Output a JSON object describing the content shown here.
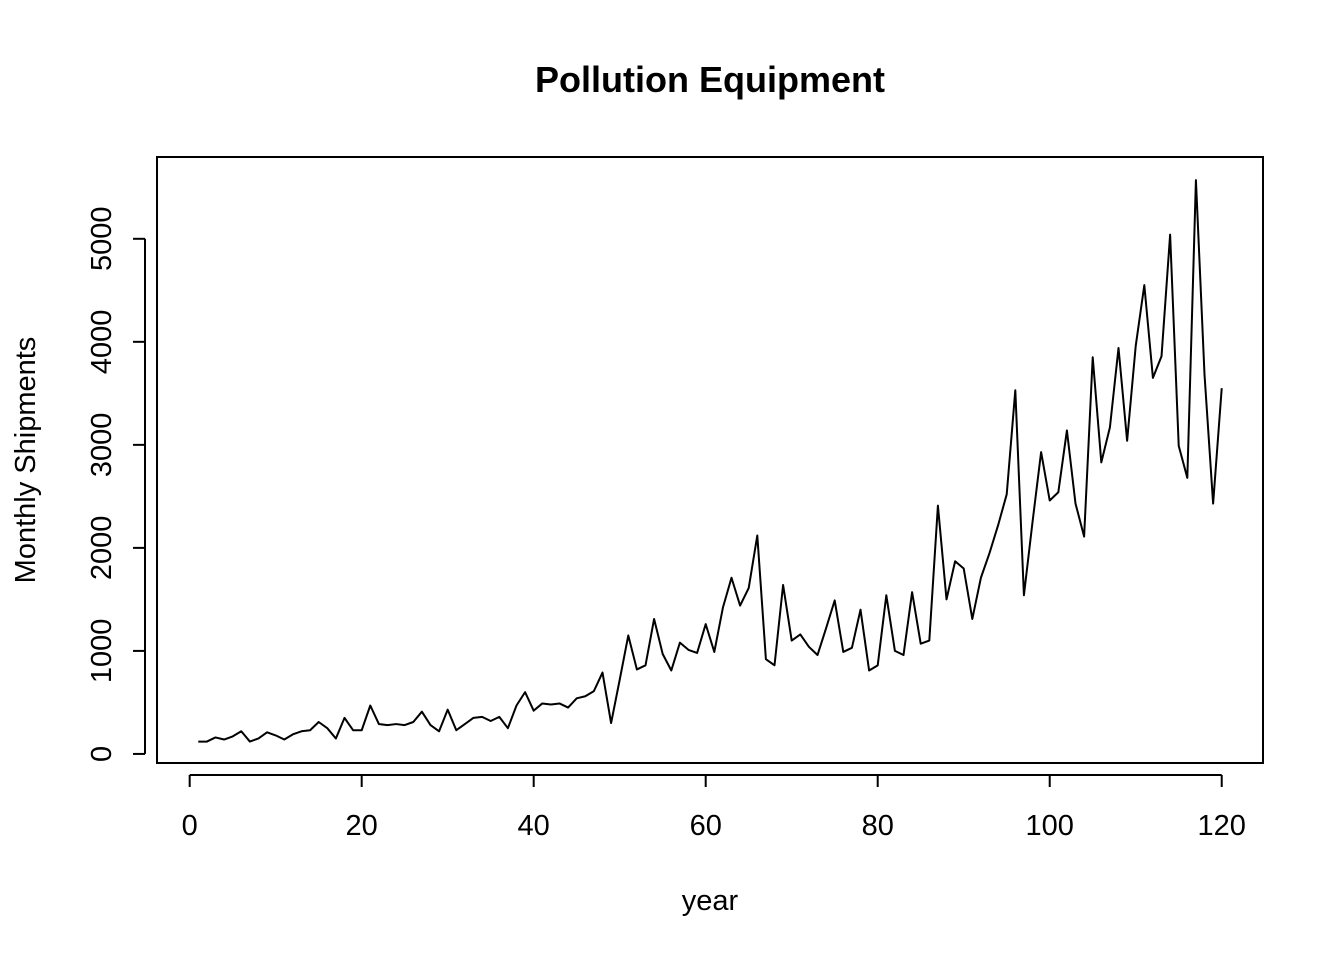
{
  "chart_data": {
    "type": "line",
    "title": "Pollution Equipment",
    "xlabel": "year",
    "ylabel": "Monthly Shipments",
    "xlim": [
      -3.8,
      124.8
    ],
    "ylim": [
      -88,
      5794
    ],
    "xticks": [
      0,
      20,
      40,
      60,
      80,
      100,
      120
    ],
    "yticks": [
      0,
      1000,
      2000,
      3000,
      4000,
      5000
    ],
    "grid": false,
    "legend": "none",
    "line_color": "#000000",
    "series": [
      {
        "x": [
          1,
          2,
          3,
          4,
          5,
          6,
          7,
          8,
          9,
          10,
          11,
          12,
          13,
          14,
          15,
          16,
          17,
          18,
          19,
          20,
          21,
          22,
          23,
          24,
          25,
          26,
          27,
          28,
          29,
          30,
          31,
          32,
          33,
          34,
          35,
          36,
          37,
          38,
          39,
          40,
          41,
          42,
          43,
          44,
          45,
          46,
          47,
          48,
          49,
          50,
          51,
          52,
          53,
          54,
          55,
          56,
          57,
          58,
          59,
          60,
          61,
          62,
          63,
          64,
          65,
          66,
          67,
          68,
          69,
          70,
          71,
          72,
          73,
          74,
          75,
          76,
          77,
          78,
          79,
          80,
          81,
          82,
          83,
          84,
          85,
          86,
          87,
          88,
          89,
          90,
          91,
          92,
          93,
          94,
          95,
          96,
          97,
          98,
          99,
          100,
          101,
          102,
          103,
          104,
          105,
          106,
          107,
          108,
          109,
          110,
          111,
          112,
          113,
          114,
          115,
          116,
          117,
          118,
          119,
          120
        ],
        "values": [
          120,
          120,
          160,
          140,
          170,
          220,
          120,
          150,
          210,
          180,
          140,
          190,
          220,
          230,
          310,
          250,
          150,
          350,
          230,
          230,
          470,
          290,
          280,
          290,
          280,
          310,
          410,
          280,
          220,
          430,
          230,
          290,
          350,
          360,
          320,
          360,
          250,
          470,
          600,
          420,
          490,
          480,
          490,
          450,
          540,
          560,
          610,
          790,
          300,
          720,
          1150,
          820,
          860,
          1310,
          970,
          810,
          1080,
          1010,
          980,
          1260,
          990,
          1420,
          1710,
          1440,
          1610,
          2120,
          920,
          860,
          1640,
          1100,
          1160,
          1040,
          960,
          1220,
          1490,
          990,
          1030,
          1400,
          810,
          860,
          1540,
          1000,
          960,
          1570,
          1070,
          1100,
          2410,
          1500,
          1870,
          1800,
          1310,
          1710,
          1950,
          2220,
          2520,
          3530,
          1540,
          2250,
          2930,
          2460,
          2540,
          3140,
          2430,
          2110,
          3850,
          2830,
          3170,
          3940,
          3040,
          3960,
          4550,
          3650,
          3860,
          5040,
          2990,
          2680,
          5570,
          3680,
          2430,
          3550
        ]
      }
    ]
  }
}
